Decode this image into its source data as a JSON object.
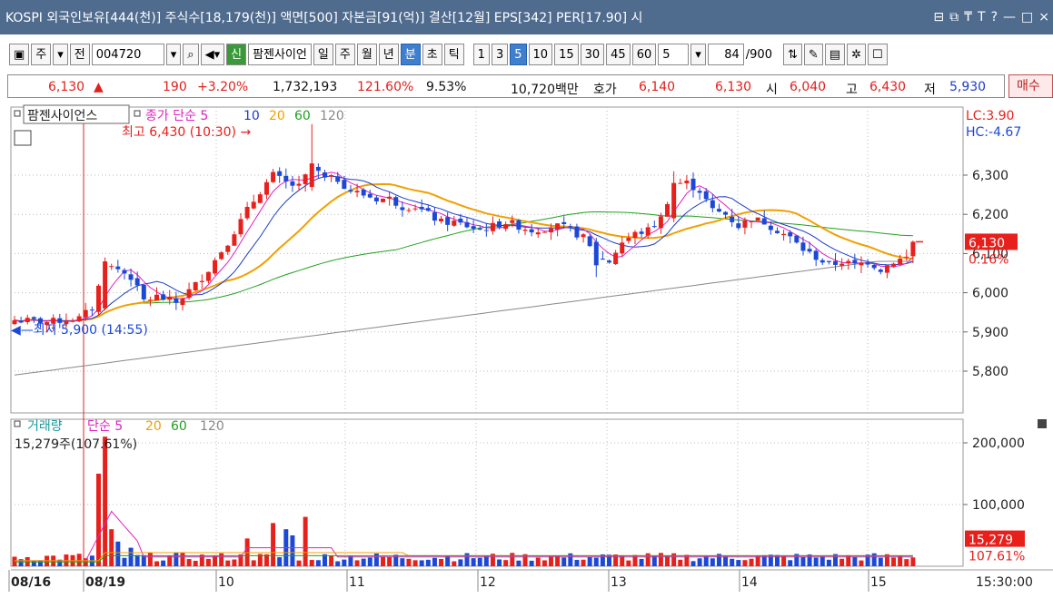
{
  "title_bar": {
    "text": "KOSPI 외국인보유[444(천)] 주식수[18,179(천)] 액면[500] 자본금[91(억)] 결산[12월] EPS[342] PER[17.90] 시",
    "icons": [
      "restore-icon",
      "popup-icon",
      "pin-icon",
      "font-icon",
      "help-icon",
      "minimize-icon",
      "maximize-icon",
      "close-icon"
    ],
    "icon_glyphs": [
      "⊟",
      "⧉",
      "₸",
      "T",
      "?",
      "—",
      "□",
      "×"
    ]
  },
  "toolbar": {
    "market": "주",
    "prefix": "전",
    "code": "004720",
    "badge": "신",
    "name": "팜젠사이언",
    "periods": [
      "일",
      "주",
      "월",
      "년",
      "분",
      "초",
      "틱"
    ],
    "selected_period": "분",
    "minutes": [
      "1",
      "3",
      "5",
      "10",
      "15",
      "30",
      "45",
      "60"
    ],
    "selected_minute": "5",
    "interval_value": "5",
    "count": "84",
    "count_total": "/900"
  },
  "quote": {
    "price": "6,130",
    "arrow": "▲",
    "change": "190",
    "change_pct": "+3.20%",
    "volume": "1,732,193",
    "volume_ratio": "121.60%",
    "turnover": "9.53%",
    "amount": "10,720백만",
    "hoga_label": "호가",
    "ask": "6,140",
    "bid": "6,130",
    "open_label": "시",
    "open": "6,040",
    "high_label": "고",
    "high": "6,430",
    "low_label": "저",
    "low": "5,930",
    "buy_button": "매수"
  },
  "chart_data": {
    "type": "candlestick",
    "legend_top": {
      "name": "팜젠사이언스",
      "series_label": "종가 단순",
      "ma_periods": [
        "5",
        "10",
        "20",
        "60",
        "120"
      ],
      "ma_colors": [
        "#e020c0",
        "#1c3cc8",
        "#f0a000",
        "#20a020",
        "#888888"
      ]
    },
    "annotations": {
      "high": "최고 6,430 (10:30)",
      "low": "최저 5,900 (14:55)",
      "lc": "LC:3.90",
      "hc": "HC:-4.67",
      "current_price": "6,130",
      "current_pct": "0.16%"
    },
    "price_axis": {
      "ticks": [
        "6,300",
        "6,200",
        "6,100",
        "6,000",
        "5,900",
        "5,800"
      ],
      "range": [
        5700,
        6430
      ]
    },
    "volume_legend": {
      "name": "거래량",
      "series_label": "단순",
      "ma_periods": [
        "5",
        "20",
        "60",
        "120"
      ],
      "current": "15,279주(107.61%)"
    },
    "volume_axis": {
      "ticks": [
        "200,000",
        "100,000"
      ],
      "current": "15,279",
      "current_pct": "107.61%"
    },
    "time_axis": [
      "08/16",
      "08/19",
      "10",
      "11",
      "12",
      "13",
      "14",
      "15"
    ],
    "time_label": "15:30:00"
  }
}
